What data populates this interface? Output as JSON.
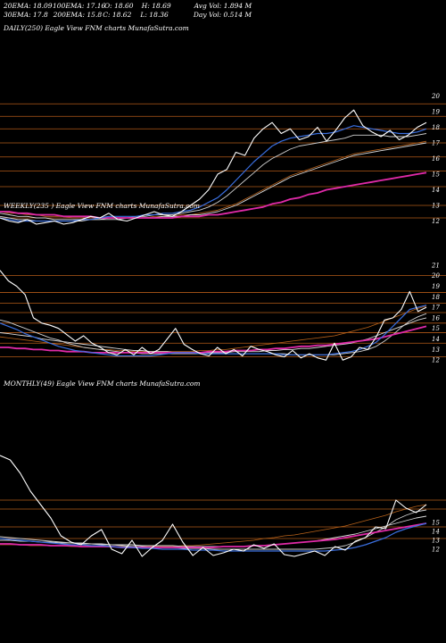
{
  "stats": {
    "row1": [
      "20EMA: 18.09",
      "100EMA: 17.16",
      "O: 18.60",
      "H: 18.69",
      "Avg Vol: 1.894 M"
    ],
    "row2": [
      "30EMA: 17.8",
      "200EMA: 15.8",
      "C: 18.62",
      "L: 18.36",
      "Day Vol: 0.514 M"
    ]
  },
  "chart_data": [
    {
      "type": "line",
      "title": "DAILY(250) Eagle View FNM charts MunafaSutra.com",
      "ylim": [
        11,
        21
      ],
      "y_ticks": [
        20,
        19,
        18,
        17,
        16,
        15,
        14,
        13,
        12
      ],
      "grid_levels": [
        19.5,
        18.7,
        17.9,
        17.0,
        16.1,
        15.2,
        14.2,
        13.0,
        12.2
      ],
      "colors": {
        "price": "#ffffff",
        "ema20": "#3a6fe0",
        "ema30": "#cfcfcf",
        "ema100": "#d9d9d9",
        "ema200": "#e02aa8",
        "ema_orange": "#b8621a",
        "grid": "#b25a18"
      },
      "series": [
        {
          "role": "price",
          "values": [
            12.2,
            12.0,
            11.9,
            12.1,
            11.8,
            11.9,
            12.0,
            11.8,
            11.9,
            12.1,
            12.3,
            12.2,
            12.5,
            12.1,
            12.0,
            12.2,
            12.4,
            12.6,
            12.4,
            12.3,
            12.6,
            13.0,
            13.4,
            14.0,
            15.0,
            15.3,
            16.4,
            16.2,
            17.3,
            17.9,
            18.3,
            17.6,
            17.9,
            17.2,
            17.4,
            18.0,
            17.1,
            17.8,
            18.6,
            19.1,
            18.1,
            17.7,
            17.4,
            17.8,
            17.2,
            17.5,
            18.0,
            18.3
          ]
        },
        {
          "role": "ema20",
          "values": [
            12.2,
            12.1,
            12.0,
            12.0,
            12.0,
            12.0,
            12.0,
            12.0,
            12.0,
            12.1,
            12.1,
            12.2,
            12.3,
            12.3,
            12.3,
            12.3,
            12.4,
            12.4,
            12.5,
            12.5,
            12.6,
            12.7,
            12.9,
            13.2,
            13.5,
            14.0,
            14.6,
            15.2,
            15.8,
            16.3,
            16.8,
            17.1,
            17.3,
            17.4,
            17.5,
            17.6,
            17.6,
            17.7,
            17.9,
            18.1,
            18.0,
            17.9,
            17.8,
            17.7,
            17.6,
            17.6,
            17.7,
            17.9
          ]
        },
        {
          "role": "ema30",
          "values": [
            12.3,
            12.2,
            12.1,
            12.1,
            12.0,
            12.0,
            12.0,
            12.0,
            12.0,
            12.0,
            12.1,
            12.1,
            12.2,
            12.2,
            12.2,
            12.3,
            12.3,
            12.4,
            12.4,
            12.4,
            12.5,
            12.6,
            12.7,
            12.9,
            13.2,
            13.6,
            14.1,
            14.6,
            15.1,
            15.6,
            16.0,
            16.3,
            16.6,
            16.8,
            16.9,
            17.0,
            17.1,
            17.2,
            17.3,
            17.5,
            17.5,
            17.5,
            17.5,
            17.4,
            17.4,
            17.4,
            17.5,
            17.6
          ]
        },
        {
          "role": "ema100",
          "values": [
            12.5,
            12.4,
            12.3,
            12.3,
            12.2,
            12.2,
            12.1,
            12.1,
            12.1,
            12.1,
            12.1,
            12.1,
            12.1,
            12.1,
            12.2,
            12.2,
            12.2,
            12.2,
            12.3,
            12.3,
            12.3,
            12.4,
            12.4,
            12.5,
            12.6,
            12.8,
            13.0,
            13.3,
            13.6,
            13.9,
            14.2,
            14.5,
            14.8,
            15.0,
            15.2,
            15.4,
            15.6,
            15.8,
            16.0,
            16.2,
            16.3,
            16.4,
            16.5,
            16.6,
            16.7,
            16.8,
            16.9,
            17.0
          ]
        },
        {
          "role": "ema_orange",
          "values": [
            12.6,
            12.5,
            12.5,
            12.4,
            12.4,
            12.3,
            12.3,
            12.3,
            12.2,
            12.2,
            12.2,
            12.2,
            12.2,
            12.2,
            12.2,
            12.2,
            12.2,
            12.3,
            12.3,
            12.3,
            12.4,
            12.4,
            12.5,
            12.6,
            12.7,
            12.9,
            13.1,
            13.4,
            13.7,
            14.0,
            14.3,
            14.6,
            14.9,
            15.1,
            15.3,
            15.5,
            15.7,
            15.9,
            16.1,
            16.3,
            16.4,
            16.5,
            16.6,
            16.7,
            16.8,
            16.9,
            17.0,
            17.1
          ]
        },
        {
          "role": "ema200",
          "values": [
            12.6,
            12.6,
            12.5,
            12.5,
            12.4,
            12.4,
            12.4,
            12.3,
            12.3,
            12.3,
            12.3,
            12.2,
            12.2,
            12.2,
            12.2,
            12.2,
            12.2,
            12.2,
            12.2,
            12.2,
            12.3,
            12.3,
            12.3,
            12.4,
            12.4,
            12.5,
            12.6,
            12.7,
            12.8,
            12.9,
            13.1,
            13.2,
            13.4,
            13.5,
            13.7,
            13.8,
            14.0,
            14.1,
            14.2,
            14.3,
            14.4,
            14.5,
            14.6,
            14.7,
            14.8,
            14.9,
            15.0,
            15.1
          ]
        }
      ]
    },
    {
      "type": "line",
      "title": "WEEKLY(235            ) Eagle View FNM charts MunafaSutra.com",
      "ylim": [
        11,
        22
      ],
      "y_ticks": [
        21,
        20,
        19,
        18,
        17,
        16,
        15,
        14,
        13,
        12
      ],
      "grid_levels": [
        20.0,
        18.4,
        17.4,
        16.5,
        15.5,
        14.6,
        13.6,
        12.3
      ],
      "colors": {
        "price": "#ffffff",
        "ema20": "#3a6fe0",
        "ema30": "#cfcfcf",
        "ema100": "#d9d9d9",
        "ema200": "#e02aa8",
        "ema_orange": "#b8621a",
        "grid": "#b25a18"
      },
      "series": [
        {
          "role": "price",
          "values": [
            20.5,
            19.5,
            19.0,
            18.2,
            16.0,
            15.5,
            15.3,
            15.0,
            14.4,
            13.8,
            14.3,
            13.6,
            13.2,
            12.7,
            12.5,
            13.0,
            12.5,
            13.2,
            12.6,
            13.0,
            14.0,
            15.0,
            13.5,
            13.0,
            12.6,
            12.4,
            13.2,
            12.6,
            13.0,
            12.4,
            13.3,
            13.0,
            12.8,
            12.5,
            12.3,
            12.9,
            12.2,
            12.6,
            12.2,
            12.0,
            13.6,
            12.0,
            12.3,
            13.2,
            13.0,
            14.2,
            15.8,
            16.0,
            16.8,
            18.5,
            16.6,
            17.0
          ]
        },
        {
          "role": "ema20",
          "values": [
            15.5,
            15.2,
            14.9,
            14.5,
            14.2,
            13.9,
            13.6,
            13.3,
            13.1,
            12.9,
            12.8,
            12.7,
            12.6,
            12.5,
            12.4,
            12.4,
            12.4,
            12.4,
            12.4,
            12.5,
            12.6,
            12.7,
            12.7,
            12.7,
            12.6,
            12.6,
            12.6,
            12.6,
            12.6,
            12.6,
            12.6,
            12.6,
            12.6,
            12.6,
            12.5,
            12.5,
            12.5,
            12.5,
            12.5,
            12.5,
            12.6,
            12.7,
            12.8,
            13.0,
            13.3,
            13.7,
            14.4,
            15.2,
            16.0,
            16.8,
            17.0,
            17.2
          ]
        },
        {
          "role": "ema30",
          "values": [
            15.8,
            15.6,
            15.3,
            15.0,
            14.7,
            14.4,
            14.1,
            13.9,
            13.6,
            13.4,
            13.2,
            13.1,
            13.0,
            12.9,
            12.8,
            12.7,
            12.7,
            12.6,
            12.6,
            12.6,
            12.6,
            12.6,
            12.6,
            12.6,
            12.6,
            12.6,
            12.6,
            12.6,
            12.6,
            12.6,
            12.6,
            12.6,
            12.6,
            12.6,
            12.6,
            12.5,
            12.5,
            12.5,
            12.5,
            12.5,
            12.5,
            12.6,
            12.7,
            12.8,
            13.0,
            13.3,
            13.8,
            14.4,
            15.1,
            15.7,
            16.1,
            16.4
          ]
        },
        {
          "role": "ema100",
          "values": [
            14.6,
            14.5,
            14.4,
            14.3,
            14.2,
            14.0,
            13.9,
            13.8,
            13.7,
            13.6,
            13.5,
            13.4,
            13.3,
            13.2,
            13.1,
            13.0,
            12.9,
            12.9,
            12.8,
            12.8,
            12.8,
            12.7,
            12.7,
            12.7,
            12.7,
            12.7,
            12.7,
            12.7,
            12.8,
            12.8,
            12.8,
            12.8,
            12.9,
            12.9,
            13.0,
            13.0,
            13.1,
            13.1,
            13.2,
            13.3,
            13.4,
            13.5,
            13.6,
            13.8,
            14.0,
            14.3,
            14.6,
            14.9,
            15.2,
            15.5,
            15.8,
            16.0
          ]
        },
        {
          "role": "ema_orange",
          "values": [
            14.2,
            14.1,
            14.0,
            13.9,
            13.8,
            13.7,
            13.6,
            13.5,
            13.4,
            13.3,
            13.2,
            13.1,
            13.0,
            13.0,
            12.9,
            12.9,
            12.8,
            12.8,
            12.8,
            12.8,
            12.8,
            12.8,
            12.8,
            12.8,
            12.9,
            12.9,
            13.0,
            13.0,
            13.1,
            13.2,
            13.3,
            13.4,
            13.5,
            13.6,
            13.7,
            13.8,
            13.9,
            14.0,
            14.1,
            14.2,
            14.3,
            14.5,
            14.7,
            14.9,
            15.1,
            15.4,
            15.7,
            16.0,
            16.3,
            16.6,
            16.9,
            17.1
          ]
        },
        {
          "role": "ema200",
          "values": [
            13.2,
            13.2,
            13.1,
            13.1,
            13.0,
            13.0,
            12.9,
            12.9,
            12.8,
            12.8,
            12.8,
            12.7,
            12.7,
            12.7,
            12.7,
            12.7,
            12.7,
            12.7,
            12.7,
            12.7,
            12.7,
            12.7,
            12.7,
            12.7,
            12.7,
            12.8,
            12.8,
            12.8,
            12.9,
            12.9,
            12.9,
            13.0,
            13.0,
            13.1,
            13.1,
            13.2,
            13.3,
            13.3,
            13.4,
            13.4,
            13.5,
            13.6,
            13.7,
            13.8,
            13.9,
            14.0,
            14.2,
            14.4,
            14.6,
            14.8,
            15.0,
            15.2
          ]
        }
      ]
    },
    {
      "type": "line",
      "title": "MONTHLY(49) Eagle View FNM charts MunafaSutra.com",
      "ylim": [
        10,
        25
      ],
      "y_ticks": [
        15,
        14,
        13,
        12
      ],
      "grid_levels": [
        17.5,
        16.5,
        14.5,
        13.2
      ],
      "colors": {
        "price": "#ffffff",
        "ema20": "#3a6fe0",
        "ema30": "#cfcfcf",
        "ema100": "#d9d9d9",
        "ema200": "#e02aa8",
        "ema_orange": "#b8621a",
        "grid": "#b25a18"
      },
      "series": [
        {
          "role": "price",
          "values": [
            22.5,
            22.0,
            20.5,
            18.5,
            17.0,
            15.5,
            13.5,
            12.8,
            12.5,
            13.5,
            14.2,
            12.0,
            11.5,
            13.0,
            11.2,
            12.2,
            13.0,
            14.8,
            12.8,
            11.3,
            12.2,
            11.3,
            11.6,
            12.0,
            11.8,
            12.5,
            12.1,
            12.6,
            11.4,
            11.2,
            11.5,
            11.8,
            11.3,
            12.3,
            11.9,
            12.9,
            13.3,
            14.5,
            14.3,
            17.5,
            16.6,
            16.1,
            17.0
          ]
        },
        {
          "role": "ema20",
          "values": [
            13.2,
            13.1,
            13.0,
            12.9,
            12.8,
            12.7,
            12.6,
            12.5,
            12.5,
            12.4,
            12.4,
            12.3,
            12.2,
            12.2,
            12.1,
            12.1,
            12.0,
            12.0,
            12.0,
            11.9,
            11.9,
            11.9,
            11.8,
            11.8,
            11.8,
            11.8,
            11.8,
            11.8,
            11.8,
            11.8,
            11.8,
            11.8,
            11.8,
            11.9,
            12.0,
            12.2,
            12.5,
            12.9,
            13.3,
            13.9,
            14.3,
            14.6,
            14.9
          ]
        },
        {
          "role": "ema30",
          "values": [
            13.4,
            13.3,
            13.2,
            13.1,
            13.0,
            12.9,
            12.8,
            12.7,
            12.7,
            12.6,
            12.5,
            12.5,
            12.4,
            12.3,
            12.3,
            12.2,
            12.2,
            12.2,
            12.1,
            12.1,
            12.1,
            12.0,
            12.0,
            12.0,
            12.0,
            12.0,
            12.0,
            12.0,
            12.0,
            12.0,
            12.0,
            12.0,
            12.1,
            12.2,
            12.4,
            12.8,
            13.3,
            13.9,
            14.5,
            15.3,
            15.8,
            16.2,
            16.4
          ]
        },
        {
          "role": "ema100",
          "values": [
            13.0,
            13.0,
            12.9,
            12.9,
            12.8,
            12.8,
            12.7,
            12.7,
            12.6,
            12.6,
            12.6,
            12.5,
            12.5,
            12.5,
            12.4,
            12.4,
            12.4,
            12.4,
            12.3,
            12.3,
            12.3,
            12.3,
            12.3,
            12.3,
            12.3,
            12.4,
            12.4,
            12.5,
            12.6,
            12.7,
            12.8,
            12.9,
            13.1,
            13.3,
            13.5,
            13.7,
            14.0,
            14.3,
            14.6,
            14.9,
            15.2,
            15.5,
            15.7
          ]
        },
        {
          "role": "ema_orange",
          "values": [
            12.5,
            12.5,
            12.5,
            12.4,
            12.4,
            12.4,
            12.4,
            12.3,
            12.3,
            12.3,
            12.3,
            12.3,
            12.3,
            12.3,
            12.3,
            12.3,
            12.3,
            12.3,
            12.4,
            12.4,
            12.5,
            12.6,
            12.7,
            12.8,
            12.9,
            13.0,
            13.2,
            13.3,
            13.5,
            13.6,
            13.8,
            14.0,
            14.2,
            14.4,
            14.6,
            14.9,
            15.2,
            15.5,
            15.8,
            16.2,
            16.5,
            16.8,
            17.0
          ]
        },
        {
          "role": "ema200",
          "values": [
            12.6,
            12.6,
            12.5,
            12.5,
            12.5,
            12.4,
            12.4,
            12.4,
            12.3,
            12.3,
            12.3,
            12.3,
            12.2,
            12.2,
            12.2,
            12.2,
            12.2,
            12.2,
            12.2,
            12.2,
            12.2,
            12.2,
            12.3,
            12.3,
            12.3,
            12.4,
            12.4,
            12.5,
            12.6,
            12.7,
            12.8,
            12.9,
            13.0,
            13.1,
            13.3,
            13.5,
            13.7,
            13.9,
            14.1,
            14.3,
            14.5,
            14.7,
            14.9
          ]
        }
      ]
    }
  ]
}
